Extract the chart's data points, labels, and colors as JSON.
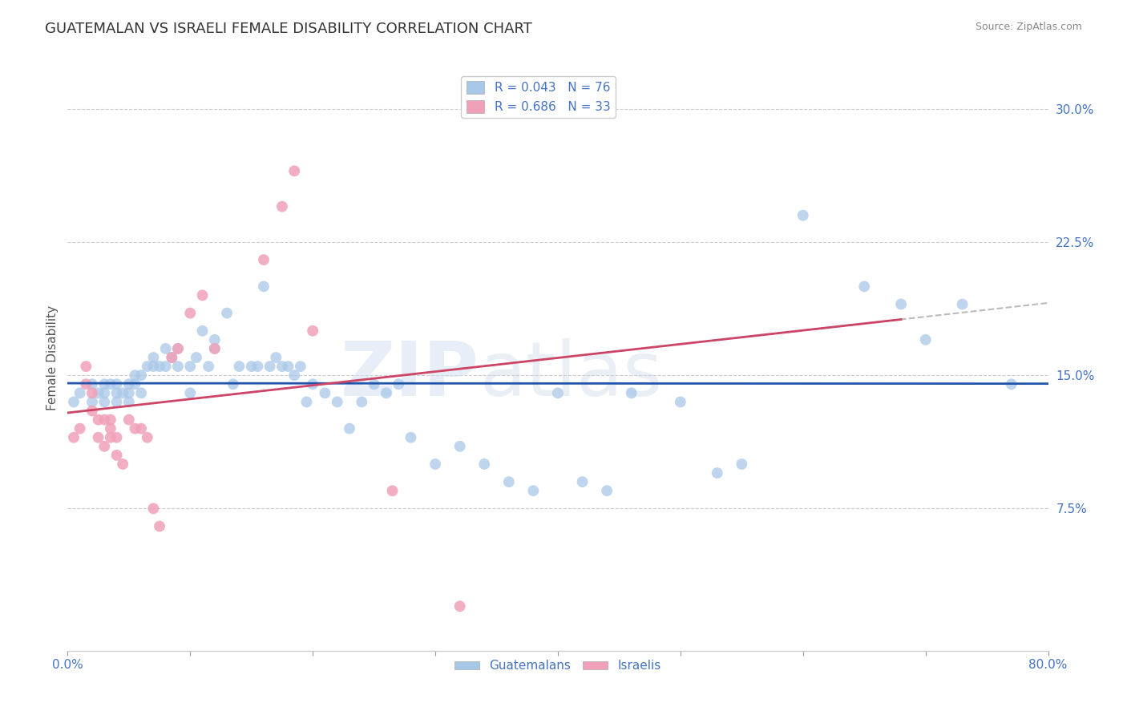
{
  "title": "GUATEMALAN VS ISRAELI FEMALE DISABILITY CORRELATION CHART",
  "source": "Source: ZipAtlas.com",
  "tick_color": "#4472c4",
  "ylabel": "Female Disability",
  "xlim": [
    0.0,
    0.8
  ],
  "ylim": [
    -0.005,
    0.325
  ],
  "xticks": [
    0.0,
    0.1,
    0.2,
    0.3,
    0.4,
    0.5,
    0.6,
    0.7,
    0.8
  ],
  "xticklabels": [
    "0.0%",
    "",
    "",
    "",
    "",
    "",
    "",
    "",
    "80.0%"
  ],
  "yticks": [
    0.0,
    0.075,
    0.15,
    0.225,
    0.3
  ],
  "yticklabels": [
    "",
    "7.5%",
    "15.0%",
    "22.5%",
    "30.0%"
  ],
  "guatemalan_color": "#a8c8e8",
  "israeli_color": "#f0a0b8",
  "guatemalan_line_color": "#2255aa",
  "israeli_line_color": "#cc4466",
  "dashed_line_color": "#bbbbbb",
  "background_color": "#ffffff",
  "grid_color": "#cccccc",
  "guatemalans_x": [
    0.005,
    0.01,
    0.02,
    0.02,
    0.025,
    0.03,
    0.03,
    0.03,
    0.035,
    0.04,
    0.04,
    0.04,
    0.045,
    0.05,
    0.05,
    0.05,
    0.055,
    0.055,
    0.06,
    0.06,
    0.065,
    0.07,
    0.07,
    0.075,
    0.08,
    0.08,
    0.085,
    0.09,
    0.09,
    0.1,
    0.1,
    0.105,
    0.11,
    0.115,
    0.12,
    0.12,
    0.13,
    0.135,
    0.14,
    0.15,
    0.155,
    0.16,
    0.165,
    0.17,
    0.175,
    0.18,
    0.185,
    0.19,
    0.195,
    0.2,
    0.21,
    0.22,
    0.23,
    0.24,
    0.25,
    0.26,
    0.27,
    0.28,
    0.3,
    0.32,
    0.34,
    0.36,
    0.38,
    0.4,
    0.42,
    0.44,
    0.46,
    0.5,
    0.53,
    0.55,
    0.6,
    0.65,
    0.68,
    0.7,
    0.73,
    0.77
  ],
  "guatemalans_y": [
    0.135,
    0.14,
    0.135,
    0.145,
    0.14,
    0.14,
    0.135,
    0.145,
    0.145,
    0.135,
    0.14,
    0.145,
    0.14,
    0.135,
    0.145,
    0.14,
    0.15,
    0.145,
    0.14,
    0.15,
    0.155,
    0.16,
    0.155,
    0.155,
    0.165,
    0.155,
    0.16,
    0.155,
    0.165,
    0.14,
    0.155,
    0.16,
    0.175,
    0.155,
    0.17,
    0.165,
    0.185,
    0.145,
    0.155,
    0.155,
    0.155,
    0.2,
    0.155,
    0.16,
    0.155,
    0.155,
    0.15,
    0.155,
    0.135,
    0.145,
    0.14,
    0.135,
    0.12,
    0.135,
    0.145,
    0.14,
    0.145,
    0.115,
    0.1,
    0.11,
    0.1,
    0.09,
    0.085,
    0.14,
    0.09,
    0.085,
    0.14,
    0.135,
    0.095,
    0.1,
    0.24,
    0.2,
    0.19,
    0.17,
    0.19,
    0.145
  ],
  "israelis_x": [
    0.005,
    0.01,
    0.015,
    0.015,
    0.02,
    0.02,
    0.025,
    0.025,
    0.03,
    0.03,
    0.035,
    0.035,
    0.035,
    0.04,
    0.04,
    0.045,
    0.05,
    0.055,
    0.06,
    0.065,
    0.07,
    0.075,
    0.085,
    0.09,
    0.1,
    0.11,
    0.12,
    0.16,
    0.175,
    0.185,
    0.2,
    0.265,
    0.32
  ],
  "israelis_y": [
    0.115,
    0.12,
    0.155,
    0.145,
    0.14,
    0.13,
    0.125,
    0.115,
    0.125,
    0.11,
    0.12,
    0.125,
    0.115,
    0.105,
    0.115,
    0.1,
    0.125,
    0.12,
    0.12,
    0.115,
    0.075,
    0.065,
    0.16,
    0.165,
    0.185,
    0.195,
    0.165,
    0.215,
    0.245,
    0.265,
    0.175,
    0.085,
    0.02
  ],
  "legend_blue_label": "R = 0.043   N = 76",
  "legend_pink_label": "R = 0.686   N = 33",
  "watermark_text": "ZIPatlas",
  "title_fontsize": 13,
  "axis_label_fontsize": 11,
  "tick_fontsize": 11,
  "legend_fontsize": 11,
  "israeli_line_x_end": 0.68,
  "dashed_line_x_start": 0.55,
  "dashed_line_x_end": 0.8
}
